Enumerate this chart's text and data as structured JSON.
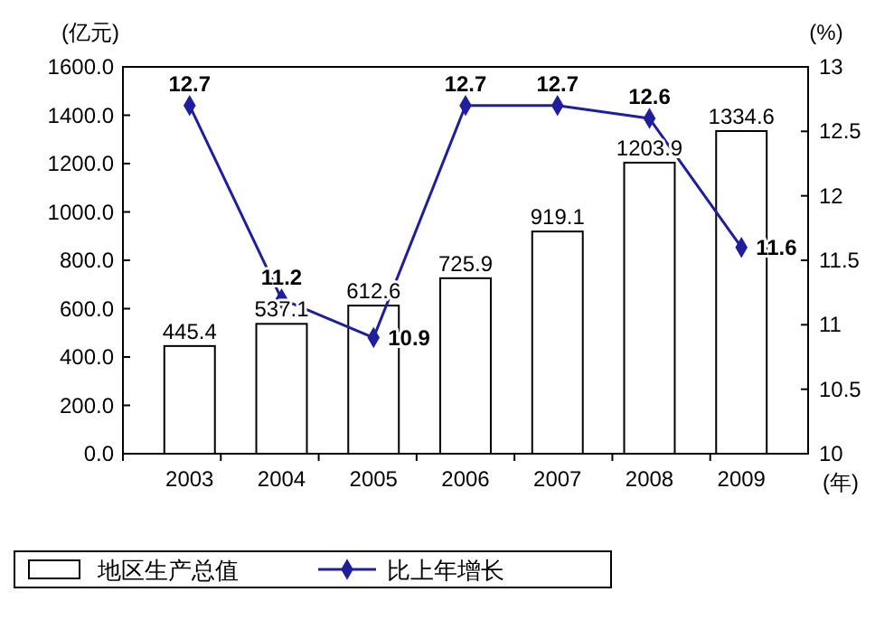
{
  "chart_data": {
    "type": "bar",
    "categories": [
      "2003",
      "2004",
      "2005",
      "2006",
      "2007",
      "2008",
      "2009"
    ],
    "ylabel": "(亿元)",
    "y2label": "(%)",
    "xlabel": "(年)",
    "series": [
      {
        "name": "地区生产总值",
        "type": "bar",
        "color": "#ffffff",
        "values": [
          445.4,
          537.1,
          612.6,
          725.9,
          919.1,
          1203.9,
          1334.6
        ]
      },
      {
        "name": "比上年增长",
        "type": "line",
        "axis": "y2",
        "color": "#1f1f9e",
        "marker": "diamond",
        "values": [
          12.7,
          11.2,
          10.9,
          12.7,
          12.7,
          12.6,
          11.6
        ]
      }
    ],
    "ylim": [
      0,
      1600
    ],
    "yticks": [
      {
        "value": 0,
        "label": "0.0"
      },
      {
        "value": 200,
        "label": "200.0"
      },
      {
        "value": 400,
        "label": "400.0"
      },
      {
        "value": 600,
        "label": "600.0"
      },
      {
        "value": 800,
        "label": "800.0"
      },
      {
        "value": 1000,
        "label": "1000.0"
      },
      {
        "value": 1200,
        "label": "1200.0"
      },
      {
        "value": 1400,
        "label": "1400.0"
      },
      {
        "value": 1600,
        "label": "1600.0"
      }
    ],
    "y2lim": [
      10,
      13
    ],
    "y2ticks": [
      10,
      10.5,
      11,
      11.5,
      12,
      12.5,
      13
    ],
    "data_labels": true,
    "legend": "bottom",
    "grid": false
  }
}
